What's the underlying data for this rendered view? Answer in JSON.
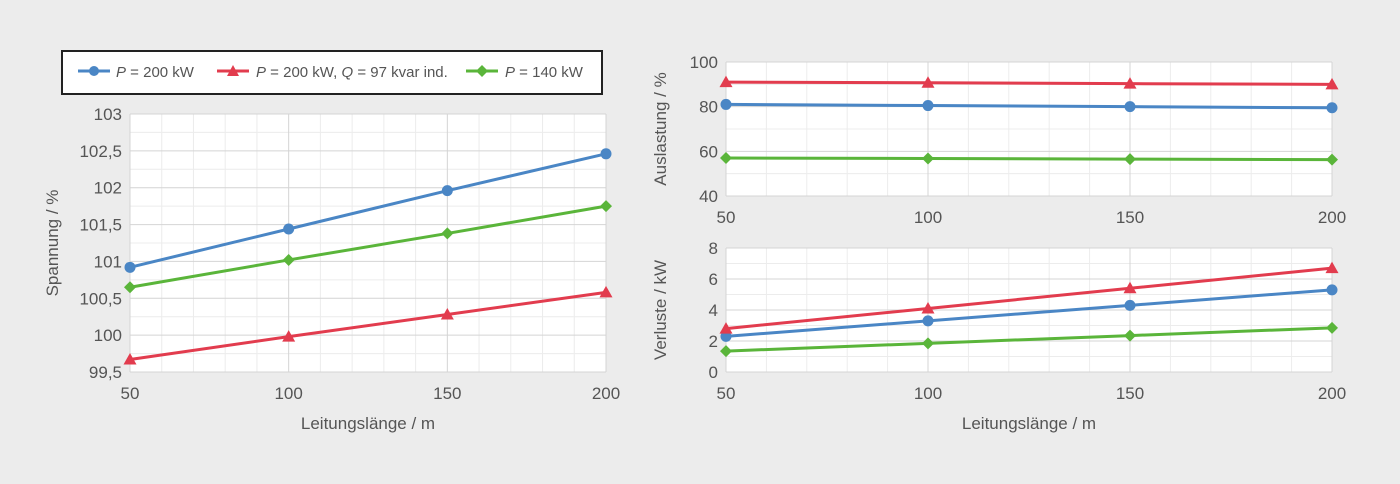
{
  "colors": {
    "background": "#ececec",
    "plot_background": "#ffffff",
    "grid_major": "#d4d4d4",
    "grid_minor": "#ececec",
    "text": "#555555",
    "series_blue": "#4a86c5",
    "series_red": "#e23c4e",
    "series_green": "#5ab53a"
  },
  "legend": {
    "entries": [
      {
        "key": "blue",
        "italic": "P",
        "text": " = 200 kW",
        "marker": "circle"
      },
      {
        "key": "red",
        "italic": "P",
        "text": " = 200 kW, ",
        "italic2": "Q",
        "text2": " = 97 kvar ind.",
        "marker": "triangle"
      },
      {
        "key": "green",
        "italic": "P",
        "text": " = 140 kW",
        "marker": "diamond"
      }
    ]
  },
  "chart_data": [
    {
      "id": "voltage",
      "type": "line",
      "x": [
        50,
        100,
        150,
        200
      ],
      "xlabel": "Leitungslänge / m",
      "ylabel": "Spannung / %",
      "xlim": [
        50,
        200
      ],
      "ylim": [
        99.5,
        103
      ],
      "yticks": [
        99.5,
        100,
        100.5,
        101,
        101.5,
        102,
        102.5,
        103
      ],
      "ytick_labels": [
        "99,5",
        "100",
        "100,5",
        "101",
        "101,5",
        "102",
        "102,5",
        "103"
      ],
      "xticks": [
        50,
        100,
        150,
        200
      ],
      "xtick_labels": [
        "50",
        "100",
        "150",
        "200"
      ],
      "series": [
        {
          "key": "blue",
          "name": "P = 200 kW",
          "values": [
            100.92,
            101.44,
            101.96,
            102.46
          ]
        },
        {
          "key": "red",
          "name": "P = 200 kW, Q = 97 kvar ind.",
          "values": [
            99.67,
            99.98,
            100.28,
            100.58
          ]
        },
        {
          "key": "green",
          "name": "P = 140 kW",
          "values": [
            100.65,
            101.02,
            101.38,
            101.75
          ]
        }
      ]
    },
    {
      "id": "load",
      "type": "line",
      "x": [
        50,
        100,
        150,
        200
      ],
      "xlabel": "",
      "ylabel": "Auslastung / %",
      "xlim": [
        50,
        200
      ],
      "ylim": [
        40,
        100
      ],
      "yticks": [
        40,
        60,
        80,
        100
      ],
      "ytick_labels": [
        "40",
        "60",
        "80",
        "100"
      ],
      "xticks": [
        50,
        100,
        150,
        200
      ],
      "xtick_labels": [
        "50",
        "100",
        "150",
        "200"
      ],
      "series": [
        {
          "key": "blue",
          "name": "P = 200 kW",
          "values": [
            81,
            80.5,
            80,
            79.5
          ]
        },
        {
          "key": "red",
          "name": "P = 200 kW, Q = 97 kvar ind.",
          "values": [
            91,
            90.7,
            90.3,
            90
          ]
        },
        {
          "key": "green",
          "name": "P = 140 kW",
          "values": [
            57,
            56.8,
            56.5,
            56.3
          ]
        }
      ]
    },
    {
      "id": "losses",
      "type": "line",
      "x": [
        50,
        100,
        150,
        200
      ],
      "xlabel": "Leitungslänge / m",
      "ylabel": "Verluste / kW",
      "xlim": [
        50,
        200
      ],
      "ylim": [
        0,
        8
      ],
      "yticks": [
        0,
        2,
        4,
        6,
        8
      ],
      "ytick_labels": [
        "0",
        "2",
        "4",
        "6",
        "8"
      ],
      "xticks": [
        50,
        100,
        150,
        200
      ],
      "xtick_labels": [
        "50",
        "100",
        "150",
        "200"
      ],
      "series": [
        {
          "key": "blue",
          "name": "P = 200 kW",
          "values": [
            2.3,
            3.3,
            4.3,
            5.3
          ]
        },
        {
          "key": "red",
          "name": "P = 200 kW, Q = 97 kvar ind.",
          "values": [
            2.8,
            4.1,
            5.4,
            6.7
          ]
        },
        {
          "key": "green",
          "name": "P = 140 kW",
          "values": [
            1.35,
            1.85,
            2.35,
            2.85
          ]
        }
      ]
    }
  ]
}
